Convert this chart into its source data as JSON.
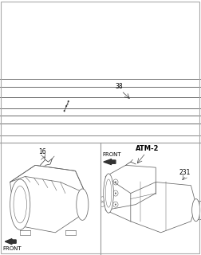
{
  "bg_color": "#ffffff",
  "line_color": "#666666",
  "dark_line": "#333333",
  "text_color": "#000000",
  "label_38": "38",
  "label_16": "16",
  "label_atm2": "ATM-2",
  "label_231": "231",
  "label_front1": "FRONT",
  "label_front2": "FRONT",
  "figsize": [
    2.52,
    3.2
  ],
  "dpi": 100
}
